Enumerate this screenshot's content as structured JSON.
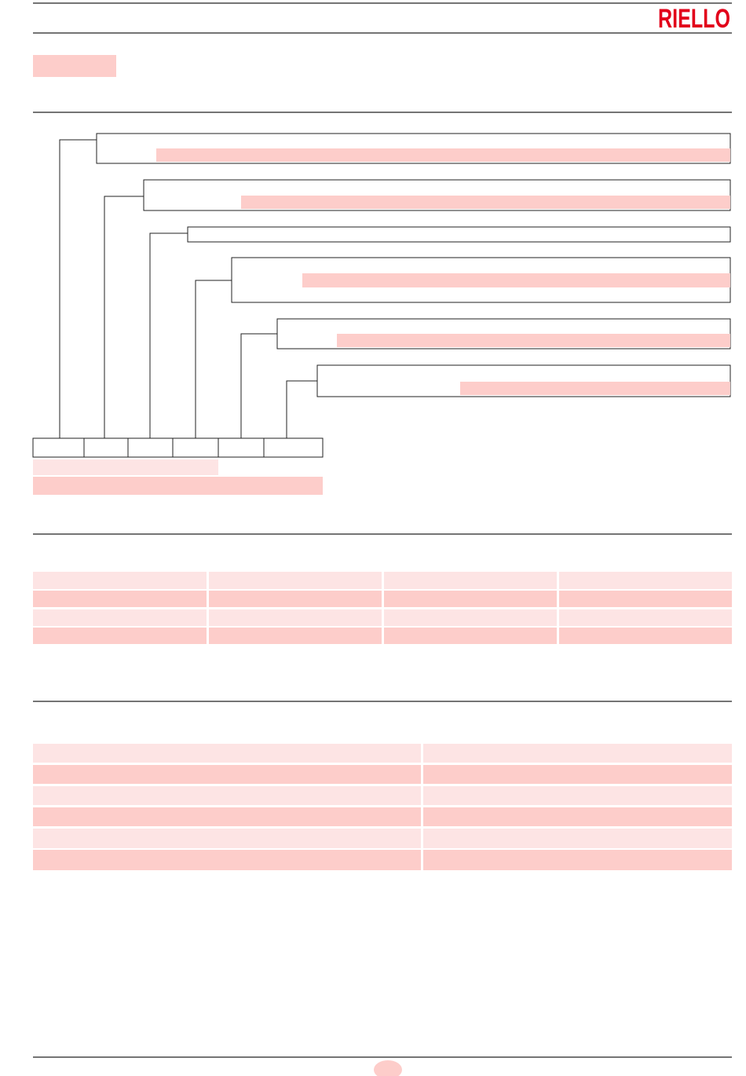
{
  "header": {
    "logo": "RIELLO"
  }
}
